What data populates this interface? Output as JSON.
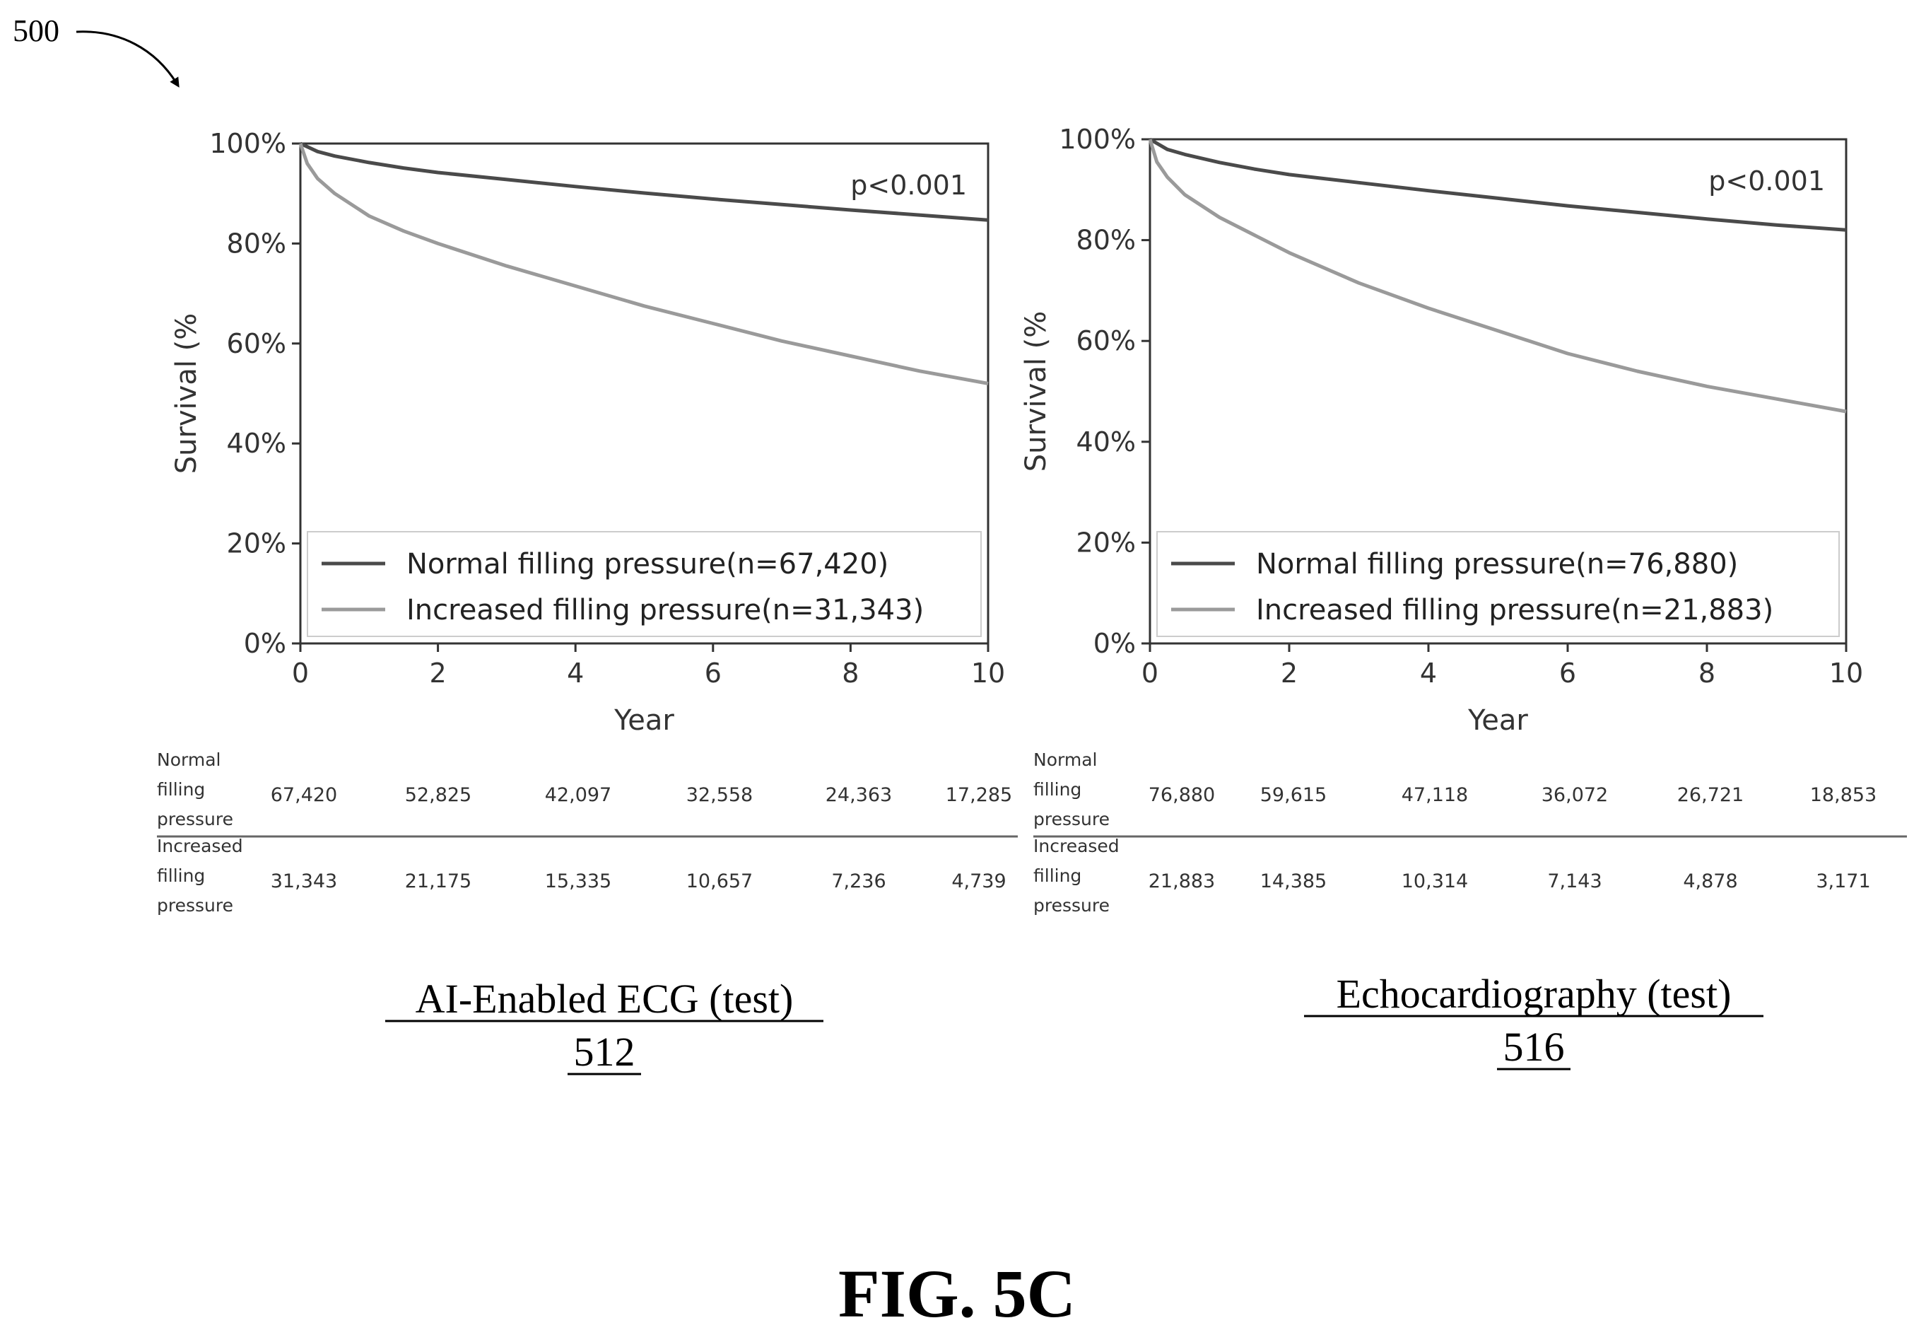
{
  "figure": {
    "ref_number": "500",
    "fig_label": "FIG. 5C"
  },
  "chart_data": [
    {
      "type": "line",
      "title": "",
      "caption": "AI-Enabled ECG (test)",
      "ref_number": "512",
      "xlabel": "Year",
      "ylabel": "Survival (%",
      "xlim": [
        0,
        10
      ],
      "ylim": [
        0,
        100
      ],
      "xticks": [
        "0",
        "2",
        "4",
        "6",
        "8",
        "10"
      ],
      "yticks": [
        "0%",
        "20%",
        "40%",
        "60%",
        "80%",
        "100%"
      ],
      "annotation": "p<0.001",
      "legend_position": "bottom",
      "grid": false,
      "series": [
        {
          "name": "Normal filling pressure(n=67,420)",
          "color": "#4a4a4a",
          "x": [
            0,
            0.25,
            0.5,
            1,
            1.5,
            2,
            3,
            4,
            5,
            6,
            7,
            8,
            9,
            10
          ],
          "y": [
            100,
            98.4,
            97.5,
            96.2,
            95.1,
            94.2,
            92.8,
            91.4,
            90.1,
            88.9,
            87.8,
            86.7,
            85.7,
            84.7
          ]
        },
        {
          "name": "Increased filling pressure(n=31,343)",
          "color": "#9a9a9a",
          "x": [
            0,
            0.1,
            0.25,
            0.5,
            1,
            1.5,
            2,
            3,
            4,
            5,
            6,
            7,
            8,
            9,
            10
          ],
          "y": [
            100,
            96,
            93,
            90,
            85.5,
            82.5,
            80,
            75.5,
            71.5,
            67.5,
            64,
            60.5,
            57.5,
            54.5,
            52
          ]
        }
      ],
      "risk_table": {
        "rows": [
          {
            "label": [
              "Normal",
              "filling",
              "pressure"
            ],
            "values": [
              "67,420",
              "52,825",
              "42,097",
              "32,558",
              "24,363",
              "17,285"
            ]
          },
          {
            "label": [
              "Increased",
              "filling",
              "pressure"
            ],
            "values": [
              "31,343",
              "21,175",
              "15,335",
              "10,657",
              "7,236",
              "4,739"
            ]
          }
        ]
      }
    },
    {
      "type": "line",
      "title": "",
      "caption": "Echocardiography (test)",
      "ref_number": "516",
      "xlabel": "Year",
      "ylabel": "Survival (%",
      "xlim": [
        0,
        10
      ],
      "ylim": [
        0,
        100
      ],
      "xticks": [
        "0",
        "2",
        "4",
        "6",
        "8",
        "10"
      ],
      "yticks": [
        "0%",
        "20%",
        "40%",
        "60%",
        "80%",
        "100%"
      ],
      "annotation": "p<0.001",
      "legend_position": "bottom",
      "grid": false,
      "series": [
        {
          "name": "Normal filling pressure(n=76,880)",
          "color": "#4a4a4a",
          "x": [
            0,
            0.25,
            0.5,
            1,
            1.5,
            2,
            3,
            4,
            5,
            6,
            7,
            8,
            9,
            10
          ],
          "y": [
            100,
            98,
            97,
            95.4,
            94.1,
            93,
            91.4,
            89.8,
            88.3,
            86.8,
            85.5,
            84.2,
            83,
            82
          ]
        },
        {
          "name": "Increased filling pressure(n=21,883)",
          "color": "#9a9a9a",
          "x": [
            0,
            0.1,
            0.25,
            0.5,
            1,
            1.5,
            2,
            3,
            4,
            5,
            6,
            7,
            8,
            9,
            10
          ],
          "y": [
            100,
            95.5,
            92.5,
            89,
            84.5,
            81,
            77.5,
            71.5,
            66.5,
            62,
            57.5,
            54,
            51,
            48.5,
            46
          ]
        }
      ],
      "risk_table": {
        "rows": [
          {
            "label": [
              "Normal",
              "filling",
              "pressure"
            ],
            "values": [
              "76,880",
              "59,615",
              "47,118",
              "36,072",
              "26,721",
              "18,853"
            ]
          },
          {
            "label": [
              "Increased",
              "filling",
              "pressure"
            ],
            "values": [
              "21,883",
              "14,385",
              "10,314",
              "7,143",
              "4,878",
              "3,171"
            ]
          }
        ]
      }
    }
  ]
}
